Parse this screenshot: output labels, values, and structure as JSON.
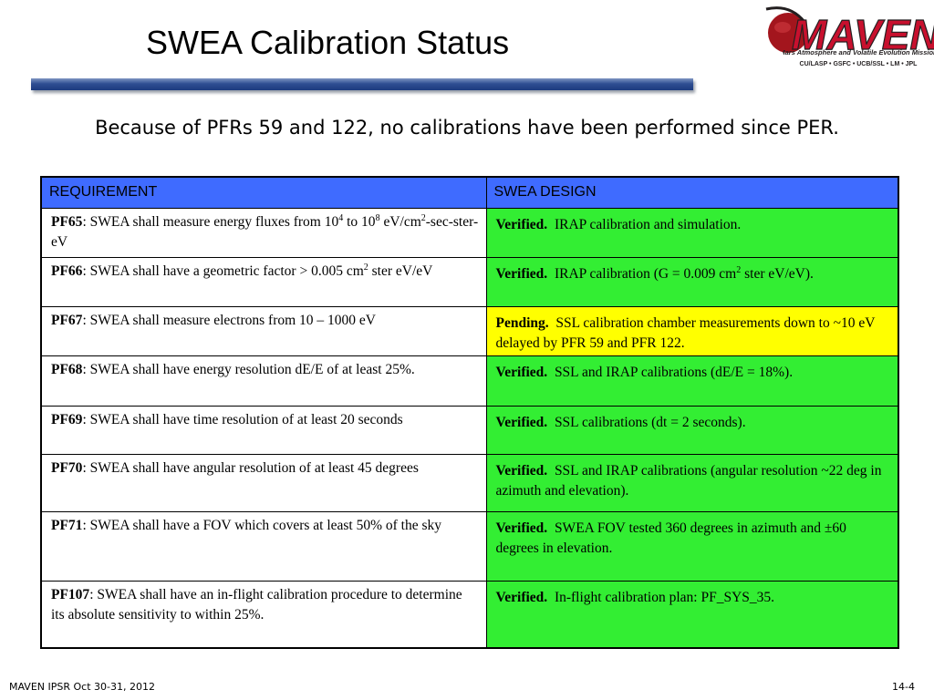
{
  "slide": {
    "title": "SWEA Calibration Status",
    "subtitle": "Because of PFRs 59 and 122, no calibrations have been performed since PER."
  },
  "logo": {
    "name": "MAVEN",
    "tagline": "Mars Atmosphere and Volatile Evolution Mission",
    "partners": "CU/LASP • GSFC • UCB/SSL • LM • JPL",
    "colors": {
      "red": "#c8102e",
      "dark": "#231f20",
      "planet": "#a3151d"
    }
  },
  "table": {
    "headers": {
      "requirement": "REQUIREMENT",
      "design": "SWEA DESIGN"
    },
    "rows": [
      {
        "code": "PF65",
        "req_a": ": SWEA shall measure energy fluxes from 10",
        "req_sup1": "4",
        "req_b": " to 10",
        "req_sup2": "8",
        "req_c": " eV/cm",
        "req_sup3": "2",
        "req_d": "-sec-ster-eV",
        "status": "Verified.",
        "design": "IRAP calibration and simulation.",
        "color": "#33ee33"
      },
      {
        "code": "PF66",
        "req_a": ": SWEA shall have a geometric factor > 0.005 cm",
        "req_sup1": "2",
        "req_b": " ster eV/eV",
        "status": "Verified.",
        "design_a": "IRAP calibration (G = 0.009 cm",
        "design_sup": "2",
        "design_b": " ster eV/eV).",
        "color": "#33ee33"
      },
      {
        "code": "PF67",
        "req": ": SWEA shall measure electrons from 10 – 1000 eV",
        "status": "Pending.",
        "design": "SSL calibration chamber measurements down to ~10 eV delayed by PFR 59 and PFR 122.",
        "color": "#ffff00"
      },
      {
        "code": "PF68",
        "req": ": SWEA shall have energy resolution dE/E of at least 25%.",
        "status": "Verified.",
        "design": "SSL and IRAP calibrations (dE/E = 18%).",
        "color": "#33ee33"
      },
      {
        "code": "PF69",
        "req": ": SWEA shall have time resolution of at least 20 seconds",
        "status": "Verified.",
        "design": "SSL calibrations (dt = 2 seconds).",
        "color": "#33ee33"
      },
      {
        "code": "PF70",
        "req": ": SWEA shall have angular resolution of at least 45 degrees",
        "status": "Verified.",
        "design": "SSL and IRAP calibrations (angular resolution ~22 deg in azimuth and elevation).",
        "color": "#33ee33"
      },
      {
        "code": "PF71",
        "req": ": SWEA shall have a FOV which covers at least 50% of the sky",
        "status": "Verified.",
        "design": "SWEA FOV tested 360 degrees in azimuth and ±60 degrees in elevation.",
        "color": "#33ee33"
      },
      {
        "code": "PF107",
        "req": ": SWEA shall have an in-flight calibration procedure to determine its absolute sensitivity to within 25%.",
        "status": "Verified.",
        "design": "In-flight calibration plan: PF_SYS_35.",
        "color": "#33ee33"
      }
    ]
  },
  "footer": {
    "left": "MAVEN IPSR  Oct 30-31, 2012",
    "page": "14-4"
  }
}
